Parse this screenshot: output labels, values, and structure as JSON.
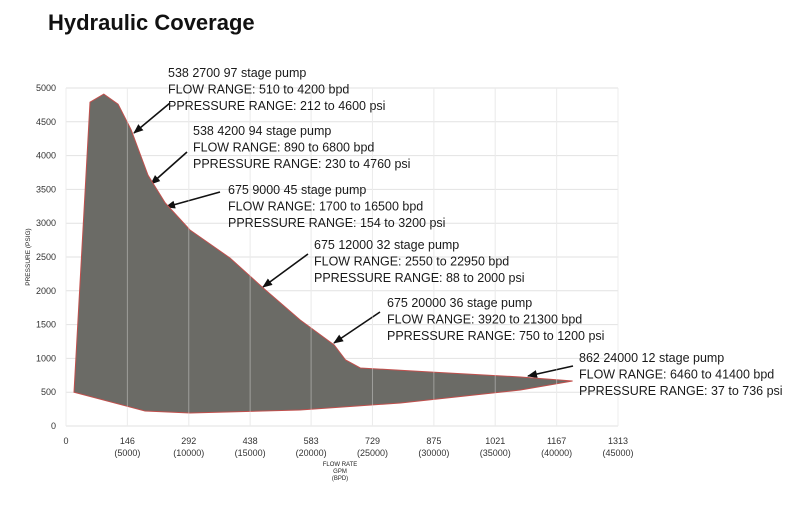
{
  "chart_data": {
    "type": "area",
    "title": "Hydraulic Coverage",
    "ylabel": "PRESSURE (PSIG)",
    "xlabel": [
      "FLOW RATE",
      "GPM",
      "(BPD)"
    ],
    "x": [
      19,
      57,
      90,
      124,
      155,
      195,
      236,
      295,
      390,
      469,
      557,
      638,
      665,
      700,
      867,
      1081,
      1205,
      1081,
      796,
      557,
      295,
      188,
      19
    ],
    "values": [
      500,
      4790,
      4910,
      4760,
      4380,
      3710,
      3300,
      2900,
      2485,
      2041,
      1568,
      1198,
      976,
      858,
      799,
      725,
      666,
      533,
      340,
      237,
      192,
      222,
      500
    ],
    "color": "#6b6b66",
    "edge_color": "#c0504d",
    "xlim": [
      0,
      1313
    ],
    "ylim": [
      0,
      5000
    ],
    "xticks": [
      0,
      146,
      292,
      438,
      583,
      729,
      875,
      1021,
      1167,
      1313
    ],
    "xticks_secondary": [
      null,
      "(5000)",
      "(10000)",
      "(15000)",
      "(20000)",
      "(25000)",
      "(30000)",
      "(35000)",
      "(40000)",
      "(45000)"
    ],
    "yticks": [
      0,
      500,
      1000,
      1500,
      2000,
      2500,
      3000,
      3500,
      4000,
      4500,
      5000
    ],
    "grid": true,
    "annotations": [
      [
        "538 2700 97 stage pump",
        "FLOW RANGE: 510 to 4200 bpd",
        "PPRESSURE RANGE: 212 to 4600 psi"
      ],
      [
        "538 4200 94 stage pump",
        "FLOW RANGE: 890 to 6800 bpd",
        "PPRESSURE RANGE: 230 to 4760 psi"
      ],
      [
        "675 9000 45 stage pump",
        "FLOW RANGE: 1700 to 16500 bpd",
        "PPRESSURE RANGE: 154 to 3200 psi"
      ],
      [
        "675 12000 32 stage pump",
        "FLOW RANGE: 2550 to 22950 bpd",
        "PPRESSURE RANGE: 88 to 2000 psi"
      ],
      [
        "675 20000 36 stage pump",
        "FLOW RANGE: 3920 to 21300 bpd",
        "PPRESSURE RANGE: 750 to 1200 psi"
      ],
      [
        "862 24000 12 stage pump",
        "FLOW RANGE: 6460 to 41400 bpd",
        "PPRESSURE RANGE: 37 to 736 psi"
      ]
    ]
  }
}
